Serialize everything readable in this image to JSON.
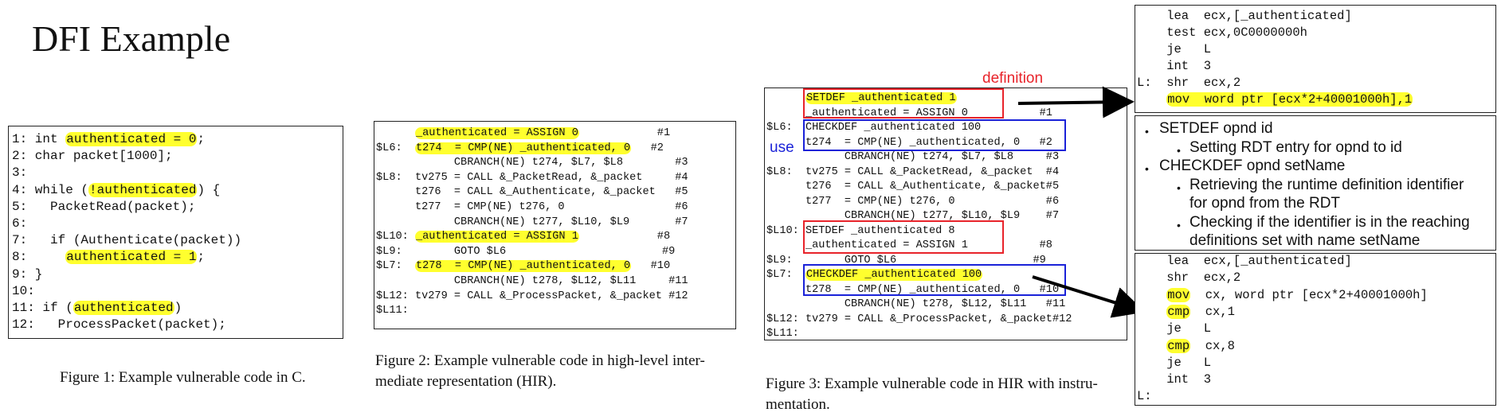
{
  "title": "DFI Example",
  "fig1": {
    "lines": [
      [
        "1: int ",
        "authenticated = 0",
        ";"
      ],
      [
        "2: char packet[1000];",
        "",
        ""
      ],
      [
        "3:",
        "",
        ""
      ],
      [
        "4: while (",
        "!authenticated",
        ") {"
      ],
      [
        "5:   PacketRead(packet);",
        "",
        ""
      ],
      [
        "6:",
        "",
        ""
      ],
      [
        "7:   if (Authenticate(packet))",
        "",
        ""
      ],
      [
        "8:     ",
        "authenticated = 1",
        ";"
      ],
      [
        "9: }",
        "",
        ""
      ],
      [
        "10:",
        "",
        ""
      ],
      [
        "11: if (",
        "authenticated",
        ")"
      ],
      [
        "12:   ProcessPacket(packet);",
        "",
        ""
      ]
    ],
    "caption": "Figure 1: Example vulnerable code in C."
  },
  "fig2": {
    "lines": [
      [
        "      ",
        "_authenticated = ASSIGN 0",
        "            #1"
      ],
      [
        "$L6:  ",
        "t274  = CMP(NE) _authenticated, 0",
        "   #2"
      ],
      [
        "            CBRANCH(NE) t274, $L7, $L8",
        "",
        "        #3"
      ],
      [
        "$L8:  tv275 = CALL &_PacketRead, &_packet",
        "",
        "     #4"
      ],
      [
        "      t276  = CALL &_Authenticate, &_packet",
        "",
        "   #5"
      ],
      [
        "      t277  = CMP(NE) t276, 0",
        "",
        "                 #6"
      ],
      [
        "            CBRANCH(NE) t277, $L10, $L9",
        "",
        "       #7"
      ],
      [
        "$L10: ",
        "_authenticated = ASSIGN 1",
        "            #8"
      ],
      [
        "$L9:        GOTO $L6",
        "",
        "                        #9"
      ],
      [
        "$L7:  ",
        "t278  = CMP(NE) _authenticated, 0",
        "   #10"
      ],
      [
        "            CBRANCH(NE) t278, $L12, $L11",
        "",
        "     #11"
      ],
      [
        "$L12: tv279 = CALL &_ProcessPacket, &_packet",
        "",
        " #12"
      ],
      [
        "$L11:",
        "",
        ""
      ]
    ],
    "caption": "Figure 2: Example vulnerable code in high-level inter-mediate representation (HIR)."
  },
  "fig3": {
    "label_definition": "definition",
    "label_use": "use",
    "lines": [
      [
        "      ",
        "SETDEF _authenticated 1",
        ""
      ],
      [
        "      _authenticated = ASSIGN 0",
        "",
        "           #1"
      ],
      [
        "$L6:  CHECKDEF _authenticated 100",
        "",
        ""
      ],
      [
        "      t274  = CMP(NE) _authenticated, 0",
        "",
        "   #2"
      ],
      [
        "            CBRANCH(NE) t274, $L7, $L8",
        "",
        "     #3"
      ],
      [
        "$L8:  tv275 = CALL &_PacketRead, &_packet",
        "",
        "  #4"
      ],
      [
        "      t276  = CALL &_Authenticate, &_packet",
        "",
        "#5"
      ],
      [
        "      t277  = CMP(NE) t276, 0",
        "",
        "              #6"
      ],
      [
        "            CBRANCH(NE) t277, $L10, $L9",
        "",
        "    #7"
      ],
      [
        "$L10: SETDEF _authenticated 8",
        "",
        ""
      ],
      [
        "      _authenticated = ASSIGN 1",
        "",
        "           #8"
      ],
      [
        "$L9:        GOTO $L6",
        "",
        "                     #9"
      ],
      [
        "$L7:  ",
        "CHECKDEF _authenticated 100",
        ""
      ],
      [
        "      t278  = CMP(NE) _authenticated, 0",
        "",
        "   #10"
      ],
      [
        "            CBRANCH(NE) t278, $L12, $L11",
        "",
        "   #11"
      ],
      [
        "$L12: tv279 = CALL &_ProcessPacket, &_packet",
        "",
        "#12"
      ],
      [
        "$L11:",
        "",
        ""
      ]
    ],
    "caption": "Figure 3: Example vulnerable code in HIR with instru-mentation."
  },
  "asm_top": {
    "lines": [
      [
        "    lea  ecx,[_authenticated]",
        ""
      ],
      [
        "    test ecx,0C0000000h",
        ""
      ],
      [
        "    je   L",
        ""
      ],
      [
        "    int  3",
        ""
      ],
      [
        "L:  shr  ecx,2",
        ""
      ],
      [
        "    ",
        "mov  word ptr [ecx*2+40001000h],1"
      ]
    ]
  },
  "notes": {
    "items": [
      {
        "level": 1,
        "text": "SETDEF opnd id"
      },
      {
        "level": 2,
        "text": "Setting RDT entry for opnd to id"
      },
      {
        "level": 1,
        "text": "CHECKDEF opnd setName"
      },
      {
        "level": 2,
        "text": "Retrieving the runtime definition identifier"
      },
      {
        "level": 0,
        "text": "for opnd from the RDT"
      },
      {
        "level": 2,
        "text": "Checking if the identifier is in the reaching"
      },
      {
        "level": 0,
        "text": "definitions set with name setName"
      }
    ]
  },
  "asm_bottom": {
    "lines": [
      [
        "    lea  ecx,[_authenticated]",
        "",
        ""
      ],
      [
        "    shr  ecx,2",
        "",
        ""
      ],
      [
        "    ",
        "mov",
        "  cx, word ptr [ecx*2+40001000h]"
      ],
      [
        "    ",
        "cmp",
        "  cx,1"
      ],
      [
        "    je   L",
        "",
        ""
      ],
      [
        "    ",
        "cmp",
        "  cx,8"
      ],
      [
        "    je   L",
        "",
        ""
      ],
      [
        "    int  3",
        "",
        ""
      ],
      [
        "L:",
        "",
        ""
      ]
    ]
  }
}
